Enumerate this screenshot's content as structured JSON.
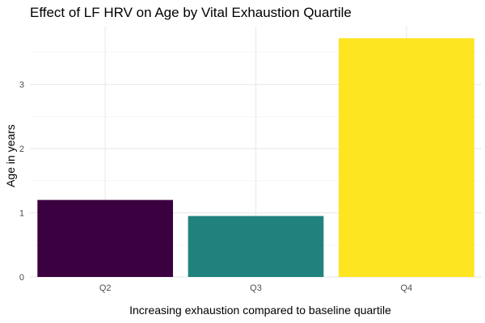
{
  "chart_data": {
    "type": "bar",
    "title": "Effect of LF HRV on Age by Vital Exhaustion Quartile",
    "xlabel": "Increasing exhaustion compared to baseline quartile",
    "ylabel": "Age in years",
    "categories": [
      "Q2",
      "Q3",
      "Q4"
    ],
    "values": [
      1.2,
      0.95,
      3.72
    ],
    "colors": [
      "#3b0040",
      "#21827d",
      "#fde521"
    ],
    "ylim": [
      0,
      3.9
    ],
    "yticks": [
      0,
      1,
      2,
      3
    ],
    "grid": true,
    "legend": "none"
  }
}
